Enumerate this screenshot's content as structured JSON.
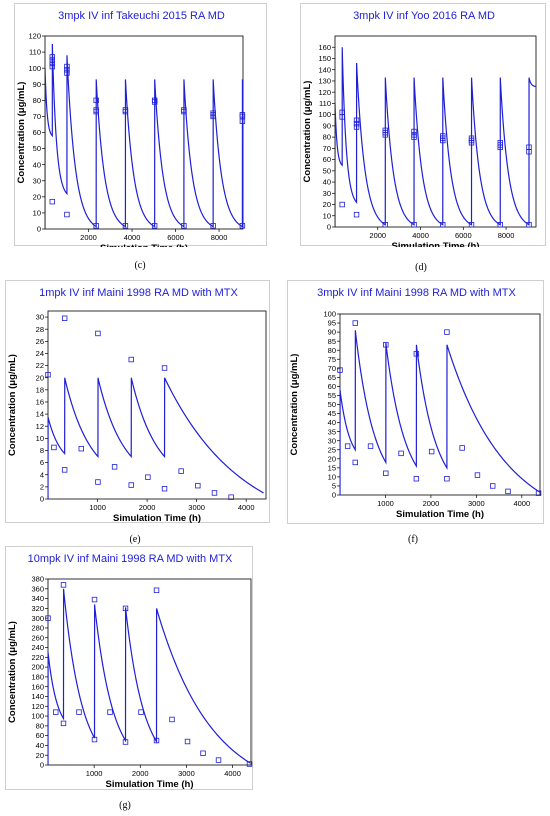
{
  "chart_data": [
    {
      "id": "c",
      "caption": "(c)",
      "type": "line",
      "title": "3mpk IV inf Takeuchi 2015 RA MD",
      "xlabel": "Simulation Time (h)",
      "ylabel": "Concentration (μg/mL)",
      "xlim": [
        0,
        9100
      ],
      "ylim": [
        0,
        120
      ],
      "xticks": [
        2000,
        4000,
        6000,
        8000
      ],
      "yticks": [
        0,
        10,
        20,
        30,
        40,
        50,
        60,
        70,
        80,
        90,
        100,
        110,
        120
      ],
      "grid": false,
      "series": [
        {
          "kind": "simulated-line",
          "color": "#1f1fd6",
          "doses": [
            {
              "t": 0,
              "pre": 0,
              "peak": 100,
              "trough": 58,
              "end": 336
            },
            {
              "t": 336,
              "pre": 58,
              "peak": 115,
              "trough": 22,
              "end": 1008
            },
            {
              "t": 1008,
              "pre": 22,
              "peak": 108,
              "trough": 1.5,
              "end": 2352
            },
            {
              "t": 2352,
              "pre": 1.5,
              "peak": 93,
              "trough": 1.5,
              "end": 3696
            },
            {
              "t": 3696,
              "pre": 1.5,
              "peak": 93,
              "trough": 1.5,
              "end": 5040
            },
            {
              "t": 5040,
              "pre": 1.5,
              "peak": 93,
              "trough": 1.5,
              "end": 6384
            },
            {
              "t": 6384,
              "pre": 1.5,
              "peak": 93,
              "trough": 1.5,
              "end": 7728
            },
            {
              "t": 7728,
              "pre": 1.5,
              "peak": 93,
              "trough": 1.5,
              "end": 9072
            },
            {
              "t": 9072,
              "pre": 1.5,
              "peak": 93,
              "trough": 90,
              "end": 9100
            }
          ],
          "decay": 3.5
        },
        {
          "kind": "observed-points",
          "color": "#1f1fd6",
          "x": [
            336,
            336,
            336,
            336,
            1008,
            1008,
            1008,
            2352,
            2352,
            2352,
            3696,
            3696,
            5040,
            5040,
            6384,
            6384,
            7728,
            7728,
            7728,
            9072,
            9072,
            9072,
            336,
            1008,
            2352,
            3696,
            5040,
            6384,
            7728,
            9072
          ],
          "y": [
            101,
            103,
            105,
            107,
            97,
            99,
            101,
            73,
            74,
            80,
            73,
            74,
            79,
            80,
            73,
            74,
            70,
            71,
            72,
            67,
            70,
            71,
            17,
            9,
            2,
            2,
            2,
            2,
            2,
            2
          ]
        }
      ]
    },
    {
      "id": "d",
      "caption": "(d)",
      "type": "line",
      "title": "3mpk IV inf Yoo 2016 RA MD",
      "xlabel": "Simulation Time (h)",
      "ylabel": "Concentration (μg/mL)",
      "xlim": [
        0,
        9400
      ],
      "ylim": [
        0,
        170
      ],
      "xticks": [
        2000,
        4000,
        6000,
        8000
      ],
      "yticks": [
        0,
        10,
        20,
        30,
        40,
        50,
        60,
        70,
        80,
        90,
        100,
        110,
        120,
        130,
        140,
        150,
        160
      ],
      "grid": false,
      "series": [
        {
          "kind": "simulated-line",
          "color": "#1f1fd6",
          "doses": [
            {
              "t": 0,
              "pre": 0,
              "peak": 110,
              "trough": 55,
              "end": 336
            },
            {
              "t": 336,
              "pre": 55,
              "peak": 160,
              "trough": 22,
              "end": 1008
            },
            {
              "t": 1008,
              "pre": 22,
              "peak": 146,
              "trough": 2,
              "end": 2352
            },
            {
              "t": 2352,
              "pre": 2,
              "peak": 133,
              "trough": 2,
              "end": 3696
            },
            {
              "t": 3696,
              "pre": 2,
              "peak": 133,
              "trough": 2,
              "end": 5040
            },
            {
              "t": 5040,
              "pre": 2,
              "peak": 133,
              "trough": 2,
              "end": 6384
            },
            {
              "t": 6384,
              "pre": 2,
              "peak": 133,
              "trough": 2,
              "end": 7728
            },
            {
              "t": 7728,
              "pre": 2,
              "peak": 133,
              "trough": 2,
              "end": 9072
            },
            {
              "t": 9072,
              "pre": 2,
              "peak": 133,
              "trough": 125,
              "end": 9400
            }
          ],
          "decay": 3.5
        },
        {
          "kind": "observed-points",
          "color": "#1f1fd6",
          "x": [
            336,
            336,
            1008,
            1008,
            1008,
            2352,
            2352,
            2352,
            3696,
            3696,
            3696,
            5040,
            5040,
            5040,
            6384,
            6384,
            6384,
            7728,
            7728,
            7728,
            9072,
            9072,
            336,
            1008,
            2352,
            3696,
            5040,
            6384,
            7728,
            9072
          ],
          "y": [
            98,
            102,
            89,
            92,
            95,
            82,
            84,
            86,
            80,
            82,
            85,
            77,
            79,
            81,
            75,
            77,
            79,
            71,
            73,
            75,
            67,
            71,
            20,
            11,
            2,
            2,
            2,
            2,
            2,
            2
          ]
        }
      ]
    },
    {
      "id": "e",
      "caption": "(e)",
      "type": "line",
      "title": "1mpk IV inf Maini 1998 RA MD with MTX",
      "xlabel": "Simulation Time (h)",
      "ylabel": "Concentration (μg/mL)",
      "xlim": [
        0,
        4400
      ],
      "ylim": [
        0,
        31
      ],
      "xticks": [
        1000,
        2000,
        3000,
        4000
      ],
      "yticks": [
        0,
        2,
        4,
        6,
        8,
        10,
        12,
        14,
        16,
        18,
        20,
        22,
        24,
        26,
        28,
        30
      ],
      "grid": false,
      "series": [
        {
          "kind": "simulated-line",
          "color": "#1f1fd6",
          "doses": [
            {
              "t": 0,
              "pre": 0,
              "peak": 13.5,
              "trough": 7.5,
              "end": 336
            },
            {
              "t": 336,
              "pre": 7.5,
              "peak": 20,
              "trough": 7,
              "end": 1008
            },
            {
              "t": 1008,
              "pre": 7,
              "peak": 20,
              "trough": 7,
              "end": 1680
            },
            {
              "t": 1680,
              "pre": 7,
              "peak": 20,
              "trough": 7,
              "end": 2352
            },
            {
              "t": 2352,
              "pre": 7,
              "peak": 20,
              "trough": 1.0,
              "end": 4350
            }
          ],
          "decay": 1.3
        },
        {
          "kind": "observed-points",
          "color": "#1f1fd6",
          "x": [
            0,
            120,
            336,
            336,
            672,
            1008,
            1008,
            1344,
            1680,
            1680,
            2016,
            2352,
            2352,
            2688,
            3024,
            3360,
            3696
          ],
          "y": [
            20.5,
            8.5,
            29.8,
            4.8,
            8.3,
            27.3,
            2.8,
            5.3,
            23.0,
            2.3,
            3.6,
            21.6,
            1.7,
            4.6,
            2.2,
            1.0,
            0.3
          ]
        }
      ]
    },
    {
      "id": "f",
      "caption": "(f)",
      "type": "line",
      "title": "3mpk IV inf Maini 1998 RA MD with MTX",
      "xlabel": "Simulation Time (h)",
      "ylabel": "Concentration (μg/mL)",
      "xlim": [
        0,
        4400
      ],
      "ylim": [
        0,
        100
      ],
      "xticks": [
        1000,
        2000,
        3000,
        4000
      ],
      "yticks": [
        0,
        5,
        10,
        15,
        20,
        25,
        30,
        35,
        40,
        45,
        50,
        55,
        60,
        65,
        70,
        75,
        80,
        85,
        90,
        95,
        100
      ],
      "grid": false,
      "series": [
        {
          "kind": "simulated-line",
          "color": "#1f1fd6",
          "doses": [
            {
              "t": 0,
              "pre": 0,
              "peak": 58,
              "trough": 25,
              "end": 336
            },
            {
              "t": 336,
              "pre": 25,
              "peak": 91,
              "trough": 18,
              "end": 1008
            },
            {
              "t": 1008,
              "pre": 18,
              "peak": 84,
              "trough": 16,
              "end": 1680
            },
            {
              "t": 1680,
              "pre": 16,
              "peak": 83,
              "trough": 15,
              "end": 2352
            },
            {
              "t": 2352,
              "pre": 15,
              "peak": 83,
              "trough": 1.5,
              "end": 4400
            }
          ],
          "decay": 1.6
        },
        {
          "kind": "observed-points",
          "color": "#1f1fd6",
          "x": [
            0,
            168,
            336,
            336,
            672,
            1008,
            1008,
            1344,
            1680,
            1680,
            2016,
            2352,
            2352,
            2688,
            3024,
            3360,
            3696,
            4368
          ],
          "y": [
            69,
            27,
            95,
            18,
            27,
            83,
            12,
            23,
            78,
            9,
            24,
            90,
            9,
            26,
            11,
            5,
            2,
            1
          ]
        }
      ]
    },
    {
      "id": "g",
      "caption": "(g)",
      "type": "line",
      "title": "10mpk IV inf Maini 1998 RA MD with MTX",
      "xlabel": "Simulation Time (h)",
      "ylabel": "Concentration (μg/mL)",
      "xlim": [
        0,
        4400
      ],
      "ylim": [
        0,
        380
      ],
      "xticks": [
        1000,
        2000,
        3000,
        4000
      ],
      "yticks": [
        0,
        20,
        40,
        60,
        80,
        100,
        120,
        140,
        160,
        180,
        200,
        220,
        240,
        260,
        280,
        300,
        320,
        340,
        360,
        380
      ],
      "grid": false,
      "series": [
        {
          "kind": "simulated-line",
          "color": "#1f1fd6",
          "doses": [
            {
              "t": 0,
              "pre": 0,
              "peak": 230,
              "trough": 95,
              "end": 336
            },
            {
              "t": 336,
              "pre": 95,
              "peak": 360,
              "trough": 55,
              "end": 1008
            },
            {
              "t": 1008,
              "pre": 55,
              "peak": 328,
              "trough": 50,
              "end": 1680
            },
            {
              "t": 1680,
              "pre": 50,
              "peak": 322,
              "trough": 48,
              "end": 2352
            },
            {
              "t": 2352,
              "pre": 48,
              "peak": 320,
              "trough": 4,
              "end": 4380
            }
          ],
          "decay": 1.7
        },
        {
          "kind": "observed-points",
          "color": "#1f1fd6",
          "x": [
            0,
            168,
            336,
            336,
            672,
            1008,
            1008,
            1344,
            1680,
            1680,
            2016,
            2352,
            2352,
            2688,
            3024,
            3360,
            3696,
            4368
          ],
          "y": [
            300,
            108,
            368,
            85,
            108,
            338,
            52,
            108,
            320,
            47,
            108,
            357,
            50,
            93,
            48,
            24,
            10,
            2
          ]
        }
      ]
    }
  ]
}
